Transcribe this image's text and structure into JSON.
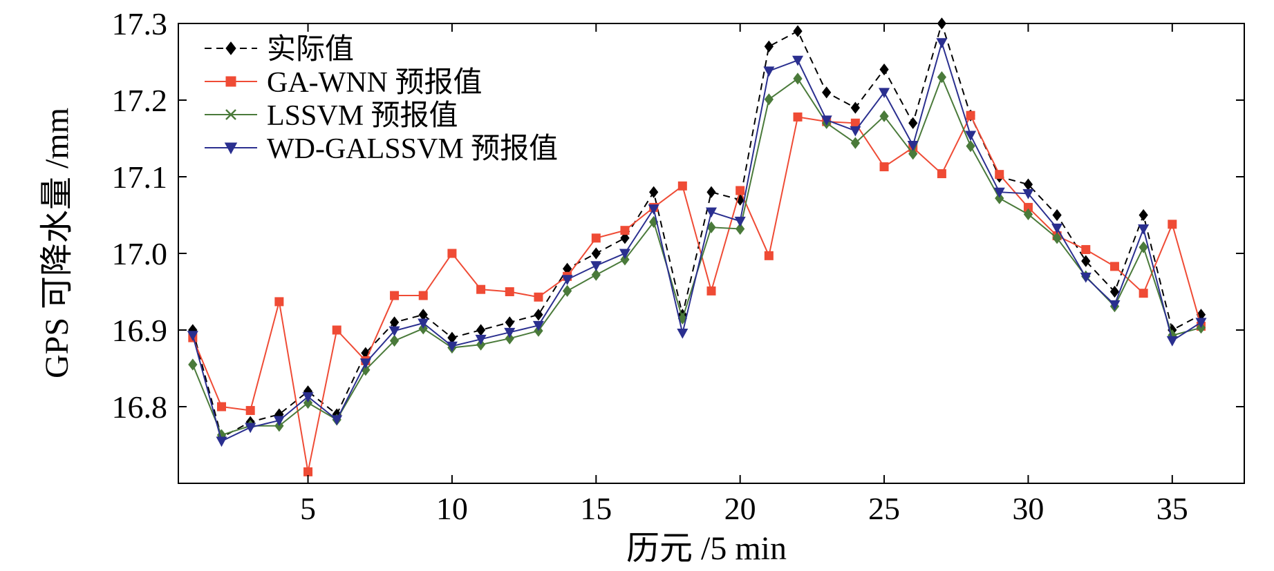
{
  "chart_data": {
    "type": "line",
    "title": "",
    "xlabel": "历元 /5 min",
    "ylabel": "GPS 可降水量 /mm",
    "xlim": [
      0.5,
      37.5
    ],
    "ylim": [
      16.7,
      17.3
    ],
    "xticks": [
      5,
      10,
      15,
      20,
      25,
      30,
      35
    ],
    "yticks": [
      16.8,
      16.9,
      17.0,
      17.1,
      17.2,
      17.3
    ],
    "ytick_labels": [
      "16.8",
      "16.9",
      "17.0",
      "17.1",
      "17.2",
      "17.3"
    ],
    "grid": false,
    "legend_position": "top-left",
    "x": [
      1,
      2,
      3,
      4,
      5,
      6,
      7,
      8,
      9,
      10,
      11,
      12,
      13,
      14,
      15,
      16,
      17,
      18,
      19,
      20,
      21,
      22,
      23,
      24,
      25,
      26,
      27,
      28,
      29,
      30,
      31,
      32,
      33,
      34,
      35,
      36
    ],
    "series": [
      {
        "name": "实际值",
        "color": "#000000",
        "marker": "diamond",
        "dashed": true,
        "values": [
          16.9,
          16.76,
          16.78,
          16.79,
          16.82,
          16.79,
          16.87,
          16.91,
          16.92,
          16.89,
          16.9,
          16.91,
          16.92,
          16.98,
          17.0,
          17.02,
          17.08,
          16.92,
          17.08,
          17.07,
          17.27,
          17.29,
          17.21,
          17.19,
          17.24,
          17.17,
          17.3,
          17.18,
          17.1,
          17.09,
          17.05,
          16.99,
          16.95,
          17.05,
          16.9,
          16.92
        ]
      },
      {
        "name": "GA-WNN 预报值",
        "color": "#ef4b35",
        "marker": "square",
        "dashed": false,
        "values": [
          16.89,
          16.8,
          16.795,
          16.937,
          16.715,
          16.9,
          16.86,
          16.945,
          16.945,
          17.0,
          16.953,
          16.95,
          16.943,
          16.97,
          17.02,
          17.03,
          17.06,
          17.088,
          16.951,
          17.082,
          16.997,
          17.178,
          17.172,
          17.17,
          17.113,
          17.138,
          17.104,
          17.18,
          17.103,
          17.06,
          17.023,
          17.005,
          16.983,
          16.948,
          17.038,
          16.905
        ]
      },
      {
        "name": "LSSVM 预报值",
        "color": "#4a7a3a",
        "marker": "diamond",
        "dashed": false,
        "values": [
          16.855,
          16.763,
          16.775,
          16.775,
          16.805,
          16.783,
          16.848,
          16.886,
          16.902,
          16.877,
          16.881,
          16.889,
          16.899,
          16.951,
          16.972,
          16.992,
          17.041,
          16.915,
          17.034,
          17.032,
          17.201,
          17.228,
          17.17,
          17.144,
          17.179,
          17.13,
          17.23,
          17.14,
          17.072,
          17.051,
          17.02,
          16.97,
          16.931,
          17.008,
          16.893,
          16.903
        ]
      },
      {
        "name": "WD-GALSSVM 预报值",
        "color": "#2a2f8f",
        "marker": "triangle-down",
        "dashed": false,
        "values": [
          16.893,
          16.755,
          16.773,
          16.782,
          16.813,
          16.783,
          16.857,
          16.899,
          16.909,
          16.879,
          16.888,
          16.897,
          16.906,
          16.966,
          16.984,
          17.0,
          17.058,
          16.896,
          17.054,
          17.042,
          17.238,
          17.252,
          17.174,
          17.16,
          17.21,
          17.141,
          17.275,
          17.154,
          17.08,
          17.078,
          17.033,
          16.969,
          16.933,
          17.032,
          16.886,
          16.91
        ]
      }
    ]
  }
}
